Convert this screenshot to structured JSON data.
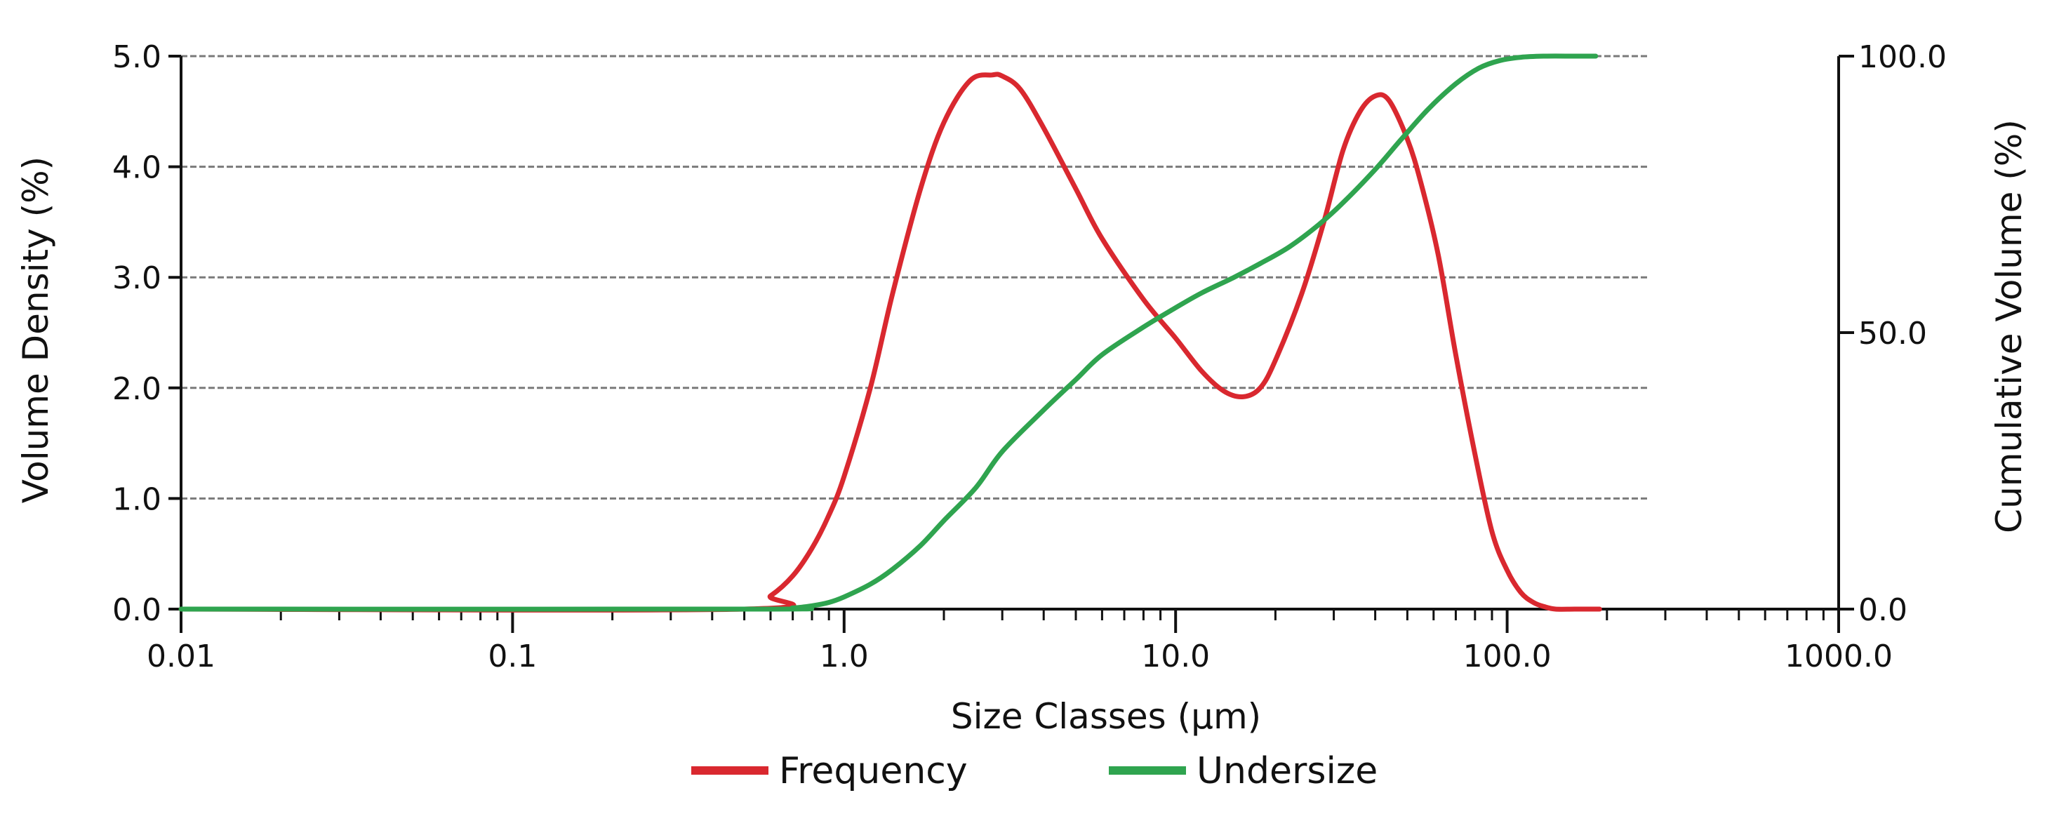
{
  "chart_data": {
    "type": "line",
    "xscale": "log",
    "xlim": [
      0.01,
      1000
    ],
    "xlabel": "Size Classes (µm)",
    "ylabel_left": "Volume Density (%)",
    "ylabel_right": "Cumulative Volume (%)",
    "ylim_left": [
      0,
      5
    ],
    "ylim_right": [
      0,
      100
    ],
    "grid": "horizontal dashed",
    "legend_position": "bottom",
    "x_ticks": [
      {
        "value": 0.01,
        "label": "0.01"
      },
      {
        "value": 0.1,
        "label": "0.1"
      },
      {
        "value": 1,
        "label": "1.0"
      },
      {
        "value": 10,
        "label": "10.0"
      },
      {
        "value": 100,
        "label": "100.0"
      },
      {
        "value": 1000,
        "label": "1000.0"
      }
    ],
    "y_ticks_left": [
      {
        "value": 0,
        "label": "0.0"
      },
      {
        "value": 1,
        "label": "1.0"
      },
      {
        "value": 2,
        "label": "2.0"
      },
      {
        "value": 3,
        "label": "3.0"
      },
      {
        "value": 4,
        "label": "4.0"
      },
      {
        "value": 5,
        "label": "5.0"
      }
    ],
    "y_ticks_right": [
      {
        "value": 0,
        "label": "0.0"
      },
      {
        "value": 50,
        "label": "50.0"
      },
      {
        "value": 100,
        "label": "100.0"
      }
    ],
    "series": [
      {
        "name": "Frequency",
        "axis": "left",
        "color": "#d9282f",
        "x": [
          0.01,
          0.5,
          0.6,
          0.7,
          0.8,
          0.9,
          1.0,
          1.2,
          1.4,
          1.7,
          2.0,
          2.4,
          2.8,
          3.0,
          3.4,
          4.0,
          5.0,
          6.0,
          8.0,
          10.0,
          12.0,
          14.0,
          16.0,
          18.0,
          20.0,
          24.0,
          28.0,
          32.0,
          36.0,
          40.0,
          44.0,
          50.0,
          55.0,
          62.0,
          70.0,
          80.0,
          90.0,
          100.0,
          110.0,
          120.0,
          130.0,
          140.0,
          160.0,
          190.0
        ],
        "y": [
          0.0,
          0.0,
          0.12,
          0.3,
          0.55,
          0.85,
          1.2,
          2.0,
          2.85,
          3.8,
          4.4,
          4.78,
          4.83,
          4.82,
          4.7,
          4.35,
          3.8,
          3.35,
          2.8,
          2.45,
          2.15,
          1.97,
          1.92,
          2.0,
          2.25,
          2.85,
          3.5,
          4.15,
          4.5,
          4.64,
          4.6,
          4.25,
          3.85,
          3.2,
          2.3,
          1.4,
          0.7,
          0.35,
          0.15,
          0.06,
          0.02,
          0.0,
          0.0,
          0.0
        ]
      },
      {
        "name": "Undersize",
        "axis": "right",
        "color": "#2fa44f",
        "x": [
          0.01,
          0.55,
          0.7,
          0.8,
          0.9,
          1.0,
          1.2,
          1.4,
          1.7,
          2.0,
          2.5,
          3.0,
          4.0,
          5.0,
          6.0,
          8.0,
          10.0,
          12.0,
          15.0,
          18.0,
          22.0,
          27.0,
          32.0,
          40.0,
          48.0,
          58.0,
          70.0,
          82.0,
          95.0,
          110.0,
          130.0,
          160.0,
          185.0
        ],
        "y": [
          0.0,
          0.0,
          0.2,
          0.6,
          1.2,
          2.2,
          4.5,
          7.2,
          11.5,
          16.0,
          22.0,
          28.5,
          36.0,
          41.5,
          46.0,
          51.0,
          54.5,
          57.2,
          60.0,
          62.5,
          65.5,
          69.5,
          73.5,
          79.5,
          85.0,
          90.5,
          95.0,
          97.8,
          99.2,
          99.8,
          100.0,
          100.0,
          100.0
        ]
      }
    ]
  }
}
